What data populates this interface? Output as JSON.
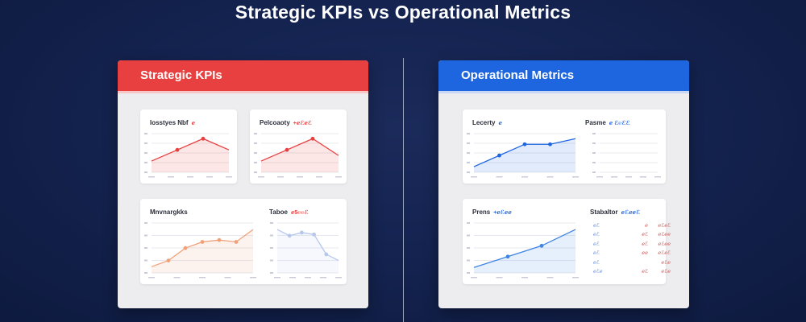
{
  "title": "Strategic KPIs vs Operational Metrics",
  "colors": {
    "background": "#142350",
    "strategic_accent": "#e84040",
    "operational_accent": "#1e66e0",
    "panel": "#ededf0",
    "card": "#ffffff"
  },
  "strategic": {
    "header": "Strategic KPIs",
    "cards": [
      {
        "title": "Iosstyes Nbf",
        "value": "ℯ",
        "chart": {
          "type": "area",
          "color": "#e84040",
          "values": [
            2,
            4,
            6,
            4
          ]
        }
      },
      {
        "title": "Pelcoaoty",
        "value": "+ℯℰℯℰ",
        "chart": {
          "type": "area",
          "color": "#e84040",
          "values": [
            2,
            4,
            6,
            3
          ]
        }
      },
      {
        "title": "Mnvnargkks",
        "value": "",
        "chart": {
          "type": "area",
          "color": "#f0a17a",
          "values": [
            1,
            2,
            4,
            5,
            5.3,
            5,
            7
          ]
        }
      },
      {
        "title": "Taboe",
        "value": "ℯ5℮℮ℰ",
        "chart": {
          "type": "area",
          "color": "#b7c7ec",
          "values": [
            7,
            6,
            6.5,
            6.2,
            3,
            2
          ]
        }
      }
    ]
  },
  "operational": {
    "header": "Operational Metrics",
    "cards": [
      {
        "title": "Lecerty",
        "value": "ℯ",
        "chart": {
          "type": "area",
          "color": "#1e66e0",
          "values": [
            1,
            3,
            5,
            5,
            6
          ]
        }
      },
      {
        "title": "Pasme",
        "value": "ℯ ℰ℮ℰℰ",
        "chart": {
          "type": "grid"
        }
      },
      {
        "title": "Prens",
        "value": "+ℯℰℯℯ",
        "chart": {
          "type": "area",
          "color": "#3f84e6",
          "values": [
            1,
            3,
            5,
            8
          ]
        }
      },
      {
        "title": "Stabaltor",
        "value": "ℯℰℯℯℰ",
        "table": [
          [
            "ℯℰ",
            "ℯ",
            "ℯℰℯℰ"
          ],
          [
            "ℯℰ",
            "ℯℰ",
            "ℯℰℯℯ"
          ],
          [
            "ℯℰ",
            "ℯℰ",
            "ℯℰℯℯ"
          ],
          [
            "ℯℰ",
            "ℯℯ",
            "ℯℰℯℰ"
          ],
          [
            "ℯℰ",
            "",
            "ℯℰℯ"
          ],
          [
            "ℯℰℯ",
            "ℯℰ",
            "ℯℰℯ"
          ]
        ]
      }
    ]
  }
}
